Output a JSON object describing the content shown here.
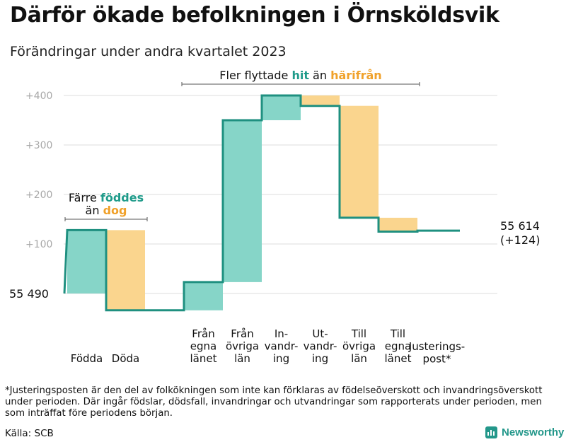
{
  "title": "Därför ökade befolkningen i Örnsköldsvik",
  "subtitle": "Förändringar under andra kvartalet 2023",
  "chart_data": {
    "type": "waterfall",
    "start_value": 55490,
    "start_label": "55  490",
    "end_value": 55614,
    "end_label_lines": [
      "55 614",
      "(+124)"
    ],
    "y_ticks": [
      {
        "value": 100,
        "label": "+100"
      },
      {
        "value": 200,
        "label": "+200"
      },
      {
        "value": 300,
        "label": "+300"
      },
      {
        "value": 400,
        "label": "+400"
      }
    ],
    "ylim": [
      -35,
      400
    ],
    "steps": [
      {
        "name": "Födda",
        "label_lines": [
          "Födda"
        ],
        "change": 128,
        "kind": "in"
      },
      {
        "name": "Döda",
        "label_lines": [
          "Döda"
        ],
        "change": -162,
        "kind": "out"
      },
      {
        "name": "Gap",
        "label_lines": [],
        "change": 0,
        "kind": "none"
      },
      {
        "name": "Från egna länet",
        "label_lines": [
          "Från",
          "egna",
          "länet"
        ],
        "change": 57,
        "kind": "in"
      },
      {
        "name": "Från övriga län",
        "label_lines": [
          "Från",
          "övriga",
          "län"
        ],
        "change": 327,
        "kind": "in"
      },
      {
        "name": "Invandring",
        "label_lines": [
          "In-",
          "vandr-",
          "ing"
        ],
        "change": 50,
        "kind": "in"
      },
      {
        "name": "Utvandring",
        "label_lines": [
          "Ut-",
          "vandr-",
          "ing"
        ],
        "change": -21,
        "kind": "out"
      },
      {
        "name": "Till övriga län",
        "label_lines": [
          "Till",
          "övriga",
          "län"
        ],
        "change": -226,
        "kind": "out"
      },
      {
        "name": "Till egna länet",
        "label_lines": [
          "Till",
          "egna",
          "länet"
        ],
        "change": -28,
        "kind": "out"
      },
      {
        "name": "Justeringspost",
        "label_lines": [
          "Justerings-",
          "post*"
        ],
        "change": 2,
        "kind": "adj"
      }
    ],
    "annotations": [
      {
        "name": "births-annotation",
        "lines": [
          [
            {
              "text": "Färre ",
              "color": "dark"
            },
            {
              "text": "föddes",
              "color": "in"
            }
          ],
          [
            {
              "text": "än ",
              "color": "dark"
            },
            {
              "text": "dog",
              "color": "out"
            }
          ]
        ]
      },
      {
        "name": "migration-annotation",
        "lines": [
          [
            {
              "text": "Fler flyttade ",
              "color": "dark"
            },
            {
              "text": "hit",
              "color": "in"
            },
            {
              "text": " än ",
              "color": "dark"
            },
            {
              "text": "härifrån",
              "color": "out"
            }
          ]
        ]
      }
    ]
  },
  "colors": {
    "in_fill": "#86d5c8",
    "out_fill": "#fad58e",
    "line": "#1f9080",
    "in_text": "#1f9b8a",
    "out_text": "#f0a12a",
    "grid": "#dcdcdc",
    "tick": "#a8a8a8",
    "dark": "#111111"
  },
  "footnote": "*Justeringsposten är den del av folkökningen som inte kan förklaras av födelseöverskott och invandringsöverskott under perioden. Där ingår födslar, dödsfall, invandringar och utvandringar som rapporterats under perioden, men som inträffat före periodens början.",
  "source": "Källa: SCB",
  "brand": "Newsworthy"
}
